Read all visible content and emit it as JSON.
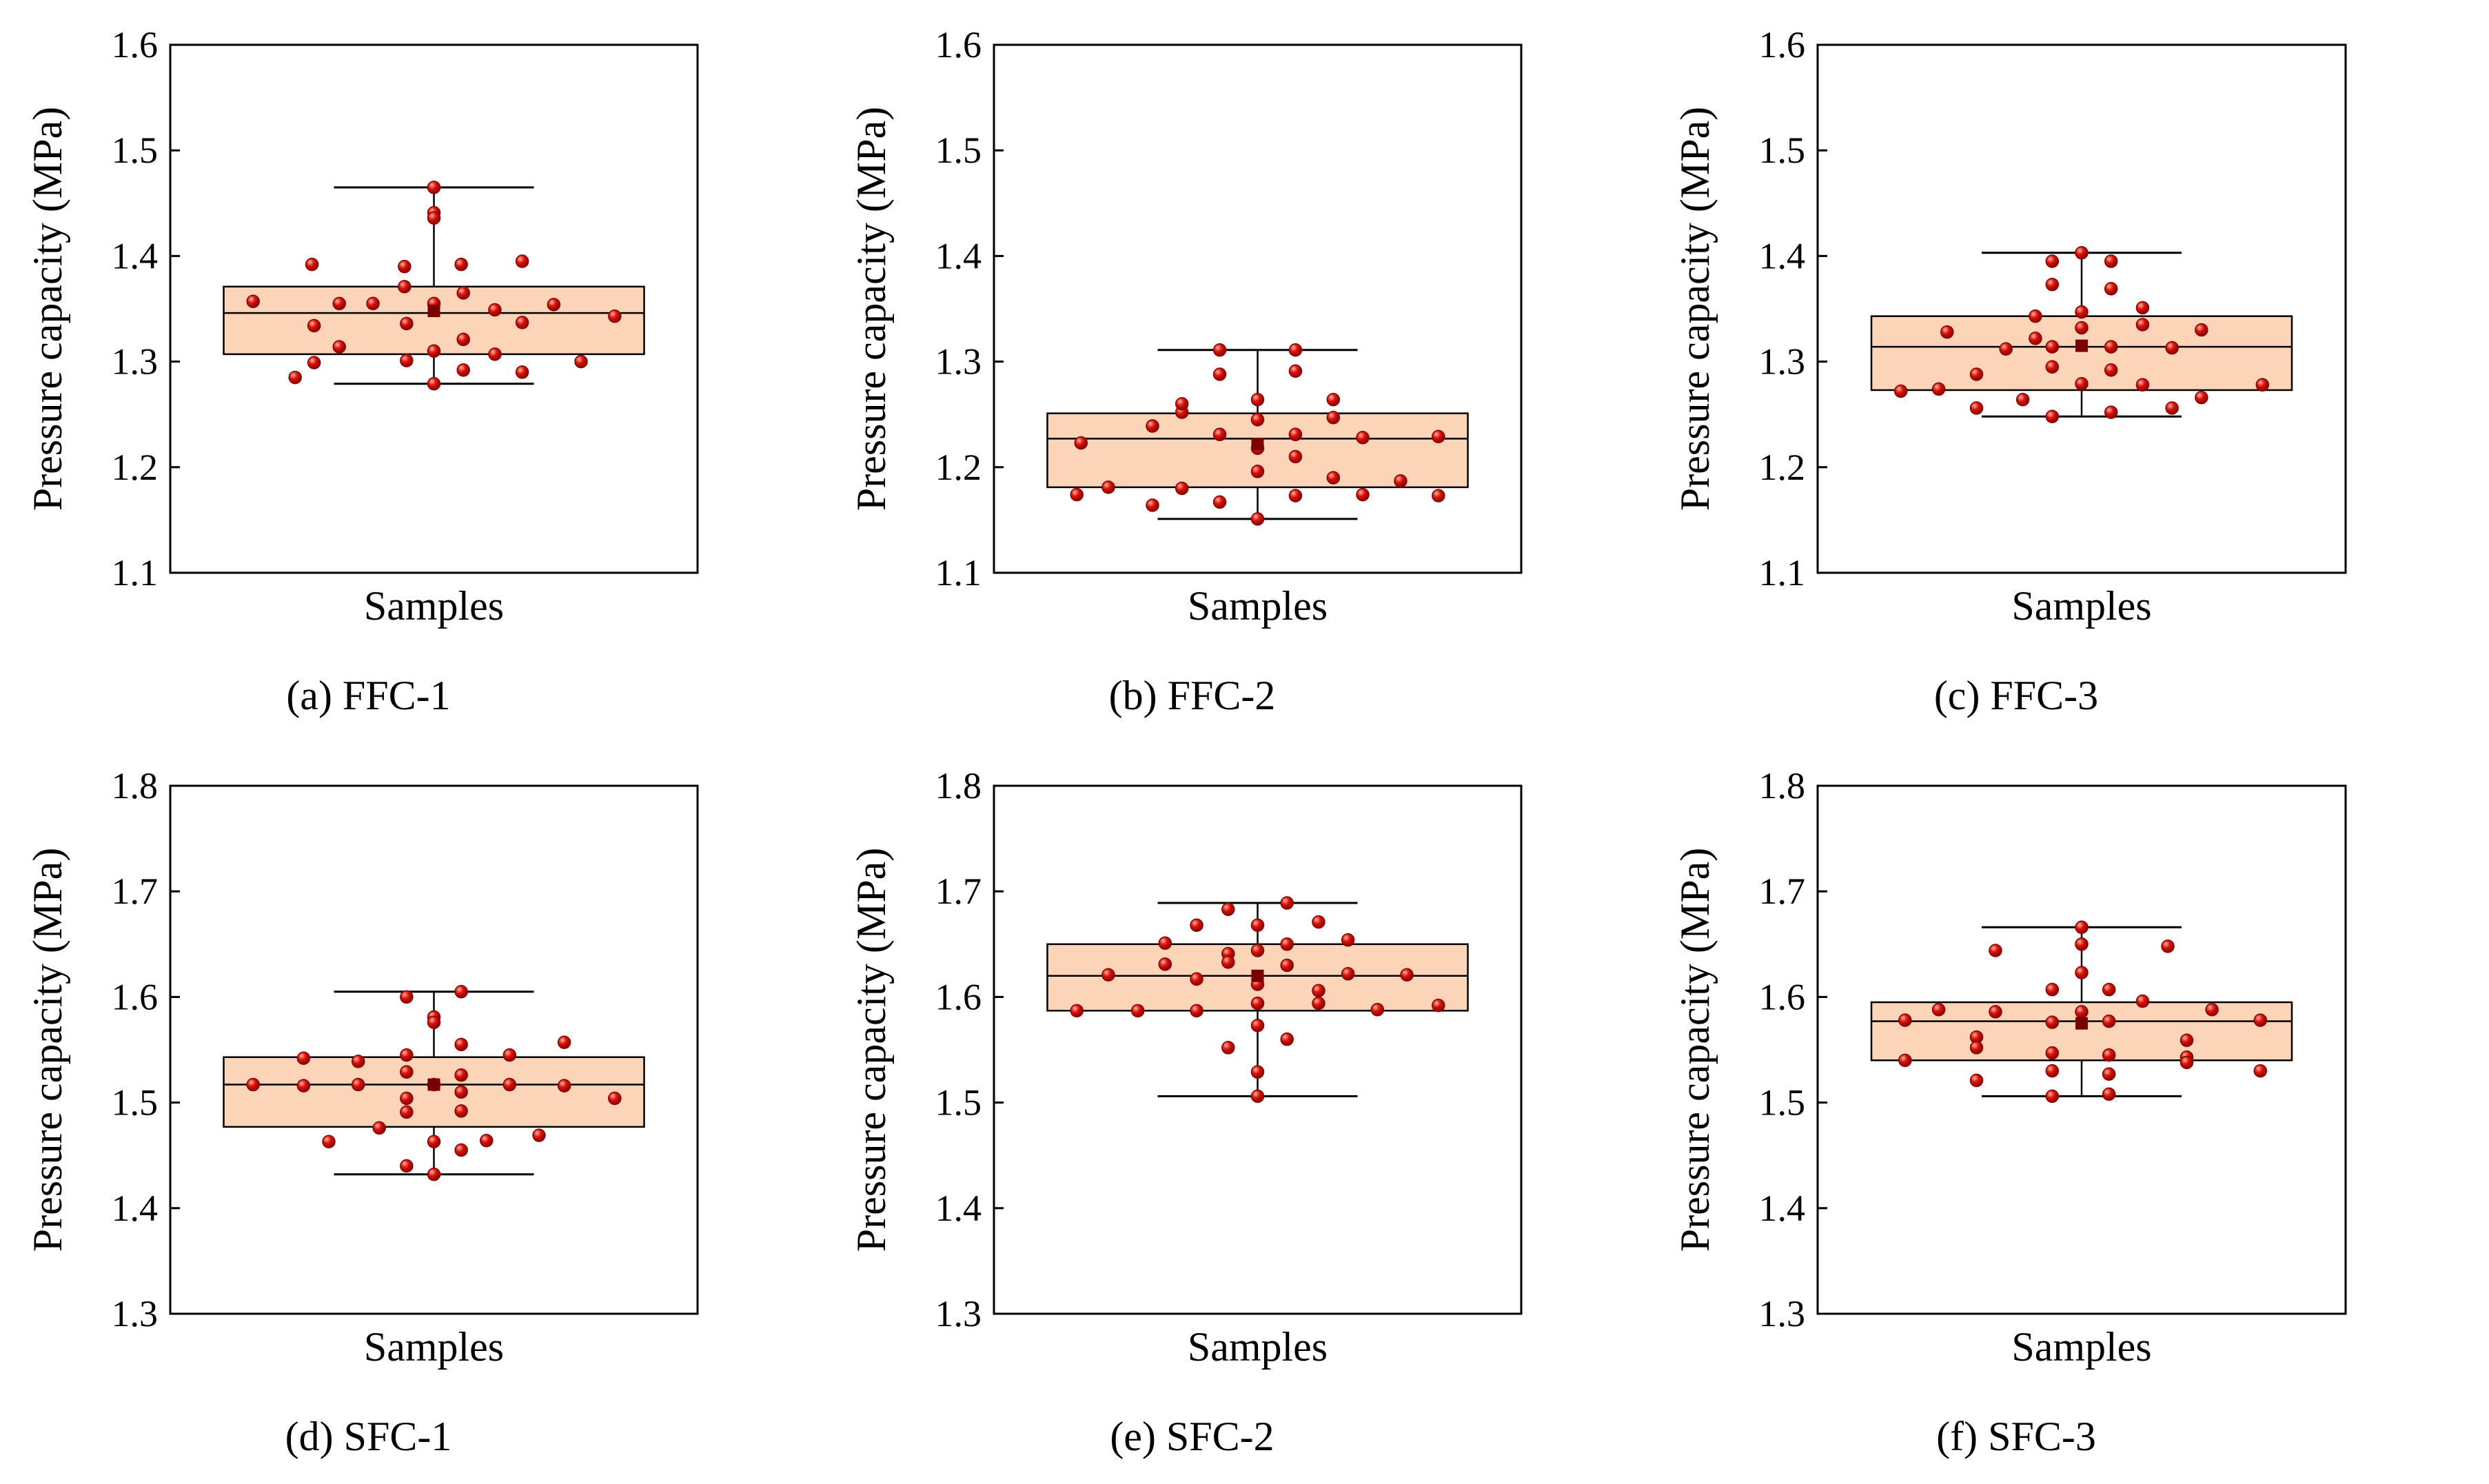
{
  "colors": {
    "box_fill": "#fcd5b8",
    "point": "#d8140a",
    "mean_marker": "#7a0000"
  },
  "chart_data": [
    {
      "type": "box",
      "caption": "(a) FFC-1",
      "xlabel": "Samples",
      "ylabel": "Pressure capacity (MPa)",
      "ylim": [
        1.1,
        1.6
      ],
      "yticks": [
        "1.1",
        "1.2",
        "1.3",
        "1.4",
        "1.5",
        "1.6"
      ],
      "box": {
        "q1": 1.307,
        "median": 1.346,
        "q3": 1.371,
        "whisker_low": 1.279,
        "whisker_high": 1.465,
        "mean": 1.348
      },
      "points": [
        [
          -0.86,
          1.357
        ],
        [
          -0.66,
          1.285
        ],
        [
          -0.57,
          1.334
        ],
        [
          -0.57,
          1.299
        ],
        [
          -0.58,
          1.392
        ],
        [
          -0.45,
          1.355
        ],
        [
          -0.45,
          1.314
        ],
        [
          -0.29,
          1.355
        ],
        [
          -0.14,
          1.39
        ],
        [
          -0.14,
          1.371
        ],
        [
          -0.13,
          1.336
        ],
        [
          -0.13,
          1.301
        ],
        [
          0.0,
          1.465
        ],
        [
          0.0,
          1.441
        ],
        [
          0.0,
          1.436
        ],
        [
          0.0,
          1.355
        ],
        [
          0.0,
          1.31
        ],
        [
          0.0,
          1.279
        ],
        [
          0.13,
          1.392
        ],
        [
          0.14,
          1.365
        ],
        [
          0.14,
          1.321
        ],
        [
          0.14,
          1.292
        ],
        [
          0.29,
          1.349
        ],
        [
          0.29,
          1.307
        ],
        [
          0.42,
          1.395
        ],
        [
          0.42,
          1.337
        ],
        [
          0.42,
          1.29
        ],
        [
          0.57,
          1.354
        ],
        [
          0.7,
          1.3
        ],
        [
          0.86,
          1.343
        ]
      ]
    },
    {
      "type": "box",
      "caption": "(b) FFC-2",
      "xlabel": "Samples",
      "ylabel": "Pressure capacity (MPa)",
      "ylim": [
        1.1,
        1.6
      ],
      "yticks": [
        "1.1",
        "1.2",
        "1.3",
        "1.4",
        "1.5",
        "1.6"
      ],
      "box": {
        "q1": 1.181,
        "median": 1.227,
        "q3": 1.251,
        "whisker_low": 1.151,
        "whisker_high": 1.311,
        "mean": 1.222
      },
      "points": [
        [
          -0.86,
          1.174
        ],
        [
          -0.84,
          1.223
        ],
        [
          -0.71,
          1.181
        ],
        [
          -0.5,
          1.164
        ],
        [
          -0.5,
          1.239
        ],
        [
          -0.36,
          1.18
        ],
        [
          -0.36,
          1.252
        ],
        [
          -0.36,
          1.26
        ],
        [
          -0.18,
          1.311
        ],
        [
          -0.18,
          1.288
        ],
        [
          -0.18,
          1.231
        ],
        [
          -0.18,
          1.167
        ],
        [
          0.0,
          1.264
        ],
        [
          0.0,
          1.245
        ],
        [
          0.0,
          1.218
        ],
        [
          0.0,
          1.196
        ],
        [
          0.0,
          1.151
        ],
        [
          0.18,
          1.311
        ],
        [
          0.18,
          1.291
        ],
        [
          0.18,
          1.231
        ],
        [
          0.18,
          1.21
        ],
        [
          0.18,
          1.173
        ],
        [
          0.36,
          1.264
        ],
        [
          0.36,
          1.247
        ],
        [
          0.36,
          1.19
        ],
        [
          0.5,
          1.228
        ],
        [
          0.5,
          1.174
        ],
        [
          0.68,
          1.187
        ],
        [
          0.86,
          1.229
        ],
        [
          0.86,
          1.173
        ]
      ]
    },
    {
      "type": "box",
      "caption": "(c) FFC-3",
      "xlabel": "Samples",
      "ylabel": "Pressure capacity (MPa)",
      "ylim": [
        1.1,
        1.6
      ],
      "yticks": [
        "1.1",
        "1.2",
        "1.3",
        "1.4",
        "1.5",
        "1.6"
      ],
      "box": {
        "q1": 1.273,
        "median": 1.314,
        "q3": 1.343,
        "whisker_low": 1.248,
        "whisker_high": 1.403,
        "mean": 1.315
      },
      "points": [
        [
          -0.86,
          1.272
        ],
        [
          -0.68,
          1.274
        ],
        [
          -0.64,
          1.328
        ],
        [
          -0.5,
          1.288
        ],
        [
          -0.5,
          1.256
        ],
        [
          -0.36,
          1.312
        ],
        [
          -0.28,
          1.264
        ],
        [
          -0.22,
          1.343
        ],
        [
          -0.22,
          1.322
        ],
        [
          -0.14,
          1.395
        ],
        [
          -0.14,
          1.373
        ],
        [
          -0.14,
          1.314
        ],
        [
          -0.14,
          1.295
        ],
        [
          -0.14,
          1.248
        ],
        [
          0.0,
          1.403
        ],
        [
          0.0,
          1.347
        ],
        [
          0.0,
          1.332
        ],
        [
          0.0,
          1.279
        ],
        [
          0.14,
          1.395
        ],
        [
          0.14,
          1.369
        ],
        [
          0.14,
          1.314
        ],
        [
          0.14,
          1.292
        ],
        [
          0.14,
          1.252
        ],
        [
          0.29,
          1.351
        ],
        [
          0.29,
          1.335
        ],
        [
          0.29,
          1.278
        ],
        [
          0.43,
          1.313
        ],
        [
          0.43,
          1.256
        ],
        [
          0.57,
          1.33
        ],
        [
          0.57,
          1.266
        ],
        [
          0.86,
          1.278
        ]
      ]
    },
    {
      "type": "box",
      "caption": "(d) SFC-1",
      "xlabel": "Samples",
      "ylabel": "Pressure capacity (MPa)",
      "ylim": [
        1.3,
        1.8
      ],
      "yticks": [
        "1.3",
        "1.4",
        "1.5",
        "1.6",
        "1.7",
        "1.8"
      ],
      "box": {
        "q1": 1.477,
        "median": 1.517,
        "q3": 1.543,
        "whisker_low": 1.432,
        "whisker_high": 1.605,
        "mean": 1.517
      },
      "points": [
        [
          -0.86,
          1.517
        ],
        [
          -0.62,
          1.542
        ],
        [
          -0.62,
          1.516
        ],
        [
          -0.5,
          1.463
        ],
        [
          -0.36,
          1.539
        ],
        [
          -0.36,
          1.517
        ],
        [
          -0.26,
          1.476
        ],
        [
          -0.13,
          1.6
        ],
        [
          -0.13,
          1.545
        ],
        [
          -0.13,
          1.529
        ],
        [
          -0.13,
          1.504
        ],
        [
          -0.13,
          1.491
        ],
        [
          -0.13,
          1.44
        ],
        [
          0.0,
          1.581
        ],
        [
          0.0,
          1.576
        ],
        [
          0.0,
          1.517
        ],
        [
          0.0,
          1.463
        ],
        [
          0.0,
          1.432
        ],
        [
          0.13,
          1.605
        ],
        [
          0.13,
          1.555
        ],
        [
          0.13,
          1.526
        ],
        [
          0.13,
          1.51
        ],
        [
          0.13,
          1.492
        ],
        [
          0.13,
          1.455
        ],
        [
          0.25,
          1.464
        ],
        [
          0.36,
          1.545
        ],
        [
          0.36,
          1.517
        ],
        [
          0.5,
          1.469
        ],
        [
          0.62,
          1.557
        ],
        [
          0.62,
          1.516
        ],
        [
          0.86,
          1.504
        ]
      ]
    },
    {
      "type": "box",
      "caption": "(e) SFC-2",
      "xlabel": "Samples",
      "ylabel": "Pressure capacity (MPa)",
      "ylim": [
        1.3,
        1.8
      ],
      "yticks": [
        "1.3",
        "1.4",
        "1.5",
        "1.6",
        "1.7",
        "1.8"
      ],
      "box": {
        "q1": 1.587,
        "median": 1.62,
        "q3": 1.65,
        "whisker_low": 1.506,
        "whisker_high": 1.689,
        "mean": 1.62
      },
      "points": [
        [
          -0.86,
          1.587
        ],
        [
          -0.71,
          1.621
        ],
        [
          -0.57,
          1.587
        ],
        [
          -0.44,
          1.651
        ],
        [
          -0.44,
          1.631
        ],
        [
          -0.29,
          1.668
        ],
        [
          -0.29,
          1.617
        ],
        [
          -0.29,
          1.587
        ],
        [
          -0.14,
          1.683
        ],
        [
          -0.14,
          1.641
        ],
        [
          -0.14,
          1.633
        ],
        [
          -0.14,
          1.552
        ],
        [
          0.0,
          1.668
        ],
        [
          0.0,
          1.644
        ],
        [
          0.0,
          1.612
        ],
        [
          0.0,
          1.594
        ],
        [
          0.0,
          1.573
        ],
        [
          0.0,
          1.529
        ],
        [
          0.0,
          1.506
        ],
        [
          0.14,
          1.689
        ],
        [
          0.14,
          1.65
        ],
        [
          0.14,
          1.63
        ],
        [
          0.14,
          1.56
        ],
        [
          0.29,
          1.671
        ],
        [
          0.29,
          1.606
        ],
        [
          0.29,
          1.594
        ],
        [
          0.43,
          1.654
        ],
        [
          0.43,
          1.622
        ],
        [
          0.57,
          1.588
        ],
        [
          0.71,
          1.621
        ],
        [
          0.86,
          1.592
        ]
      ]
    },
    {
      "type": "box",
      "caption": "(f) SFC-3",
      "xlabel": "Samples",
      "ylabel": "Pressure capacity (MPa)",
      "ylim": [
        1.3,
        1.8
      ],
      "yticks": [
        "1.3",
        "1.4",
        "1.5",
        "1.6",
        "1.7",
        "1.8"
      ],
      "box": {
        "q1": 1.54,
        "median": 1.577,
        "q3": 1.595,
        "whisker_low": 1.506,
        "whisker_high": 1.666,
        "mean": 1.575
      },
      "points": [
        [
          -0.84,
          1.578
        ],
        [
          -0.84,
          1.54
        ],
        [
          -0.68,
          1.588
        ],
        [
          -0.5,
          1.562
        ],
        [
          -0.5,
          1.552
        ],
        [
          -0.5,
          1.521
        ],
        [
          -0.41,
          1.644
        ],
        [
          -0.41,
          1.586
        ],
        [
          -0.14,
          1.607
        ],
        [
          -0.14,
          1.576
        ],
        [
          -0.14,
          1.547
        ],
        [
          -0.14,
          1.53
        ],
        [
          -0.14,
          1.506
        ],
        [
          0.0,
          1.666
        ],
        [
          0.0,
          1.65
        ],
        [
          0.0,
          1.623
        ],
        [
          0.0,
          1.586
        ],
        [
          0.13,
          1.607
        ],
        [
          0.13,
          1.577
        ],
        [
          0.13,
          1.545
        ],
        [
          0.13,
          1.527
        ],
        [
          0.13,
          1.508
        ],
        [
          0.29,
          1.596
        ],
        [
          0.41,
          1.648
        ],
        [
          0.5,
          1.559
        ],
        [
          0.5,
          1.543
        ],
        [
          0.5,
          1.538
        ],
        [
          0.62,
          1.588
        ],
        [
          0.85,
          1.578
        ],
        [
          0.85,
          1.53
        ]
      ]
    }
  ]
}
